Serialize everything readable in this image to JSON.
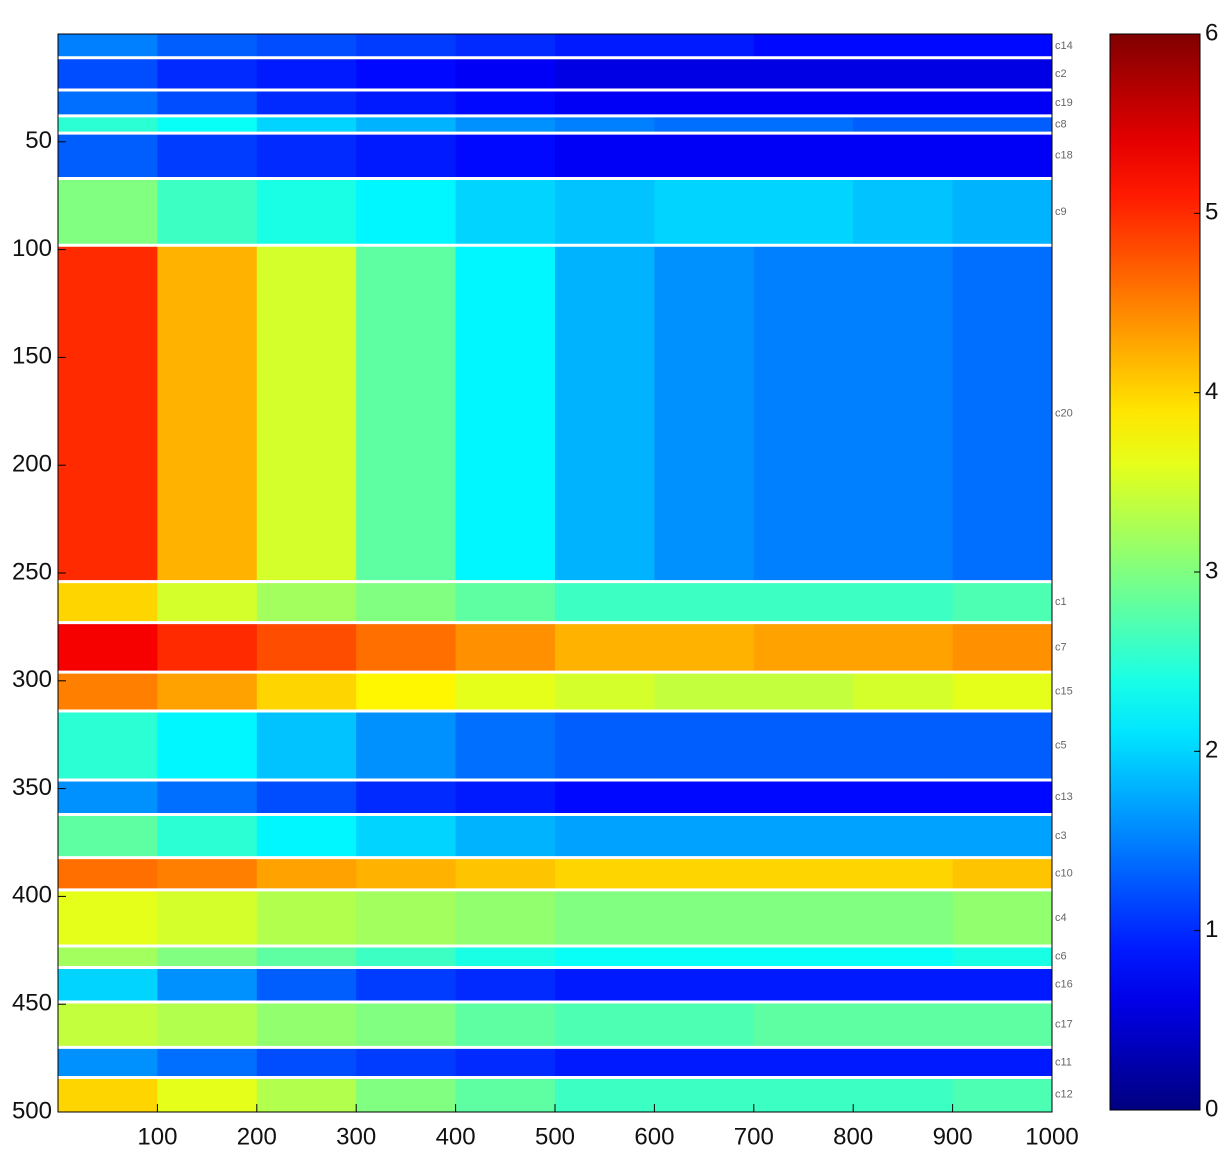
{
  "chart_data": {
    "type": "heatmap",
    "colormap": "jet",
    "xlim": [
      0,
      1000
    ],
    "ylim": [
      0,
      500
    ],
    "clim": [
      0,
      6
    ],
    "xticks": [
      100,
      200,
      300,
      400,
      500,
      600,
      700,
      800,
      900,
      1000
    ],
    "yticks": [
      50,
      100,
      150,
      200,
      250,
      300,
      350,
      400,
      450,
      500
    ],
    "cticks": [
      0,
      1,
      2,
      3,
      4,
      5,
      6
    ],
    "xbins": [
      0,
      100,
      200,
      300,
      400,
      500,
      600,
      700,
      800,
      900,
      1000
    ],
    "series": [
      {
        "name": "c14",
        "start": 0,
        "end": 11,
        "values": [
          1.5,
          1.3,
          1.2,
          1.1,
          1.0,
          0.9,
          0.9,
          0.8,
          0.8,
          0.8
        ]
      },
      {
        "name": "c2",
        "start": 11,
        "end": 26,
        "values": [
          1.2,
          1.0,
          0.9,
          0.8,
          0.7,
          0.6,
          0.6,
          0.6,
          0.6,
          0.6
        ]
      },
      {
        "name": "c19",
        "start": 26,
        "end": 38,
        "values": [
          1.4,
          1.2,
          1.0,
          0.9,
          0.8,
          0.7,
          0.7,
          0.7,
          0.7,
          0.7
        ]
      },
      {
        "name": "c8",
        "start": 38,
        "end": 46,
        "values": [
          2.5,
          2.3,
          2.0,
          1.8,
          1.6,
          1.5,
          1.4,
          1.4,
          1.3,
          1.3
        ]
      },
      {
        "name": "c18",
        "start": 46,
        "end": 67,
        "values": [
          1.3,
          1.1,
          1.0,
          0.9,
          0.8,
          0.7,
          0.7,
          0.7,
          0.7,
          0.7
        ]
      },
      {
        "name": "c9",
        "start": 67,
        "end": 98,
        "values": [
          3.0,
          2.6,
          2.4,
          2.2,
          2.0,
          1.9,
          2.0,
          2.0,
          1.9,
          1.8
        ]
      },
      {
        "name": "c20",
        "start": 98,
        "end": 254,
        "values": [
          5.0,
          4.2,
          3.5,
          2.8,
          2.2,
          1.8,
          1.6,
          1.5,
          1.5,
          1.4
        ]
      },
      {
        "name": "c1",
        "start": 254,
        "end": 273,
        "values": [
          4.0,
          3.5,
          3.2,
          3.0,
          2.8,
          2.6,
          2.6,
          2.6,
          2.6,
          2.7
        ]
      },
      {
        "name": "c7",
        "start": 273,
        "end": 296,
        "values": [
          5.3,
          5.0,
          4.8,
          4.6,
          4.4,
          4.2,
          4.2,
          4.3,
          4.3,
          4.4
        ]
      },
      {
        "name": "c15",
        "start": 296,
        "end": 314,
        "values": [
          4.5,
          4.3,
          4.0,
          3.8,
          3.6,
          3.5,
          3.4,
          3.4,
          3.5,
          3.6
        ]
      },
      {
        "name": "c5",
        "start": 314,
        "end": 346,
        "values": [
          2.5,
          2.2,
          1.9,
          1.6,
          1.4,
          1.3,
          1.3,
          1.3,
          1.3,
          1.3
        ]
      },
      {
        "name": "c13",
        "start": 346,
        "end": 362,
        "values": [
          1.6,
          1.4,
          1.2,
          1.0,
          0.9,
          0.8,
          0.8,
          0.8,
          0.8,
          0.8
        ]
      },
      {
        "name": "c3",
        "start": 362,
        "end": 382,
        "values": [
          2.8,
          2.5,
          2.2,
          2.0,
          1.8,
          1.7,
          1.7,
          1.7,
          1.7,
          1.7
        ]
      },
      {
        "name": "c10",
        "start": 382,
        "end": 397,
        "values": [
          4.6,
          4.5,
          4.3,
          4.2,
          4.1,
          4.0,
          4.0,
          4.0,
          4.0,
          4.1
        ]
      },
      {
        "name": "c4",
        "start": 397,
        "end": 423,
        "values": [
          3.6,
          3.5,
          3.3,
          3.2,
          3.1,
          3.0,
          3.0,
          3.0,
          3.0,
          3.1
        ]
      },
      {
        "name": "c6",
        "start": 423,
        "end": 433,
        "values": [
          3.2,
          3.0,
          2.8,
          2.6,
          2.4,
          2.3,
          2.3,
          2.3,
          2.3,
          2.4
        ]
      },
      {
        "name": "c16",
        "start": 433,
        "end": 449,
        "values": [
          2.0,
          1.6,
          1.3,
          1.1,
          1.0,
          0.9,
          0.9,
          0.9,
          0.9,
          0.9
        ]
      },
      {
        "name": "c17",
        "start": 449,
        "end": 470,
        "values": [
          3.4,
          3.3,
          3.1,
          3.0,
          2.8,
          2.7,
          2.7,
          2.8,
          2.8,
          2.8
        ]
      },
      {
        "name": "c11",
        "start": 470,
        "end": 484,
        "values": [
          1.6,
          1.4,
          1.2,
          1.1,
          1.0,
          0.9,
          0.9,
          0.9,
          0.9,
          0.9
        ]
      },
      {
        "name": "c12",
        "start": 484,
        "end": 500,
        "values": [
          4.0,
          3.6,
          3.3,
          3.0,
          2.8,
          2.6,
          2.6,
          2.6,
          2.6,
          2.7
        ]
      }
    ]
  }
}
